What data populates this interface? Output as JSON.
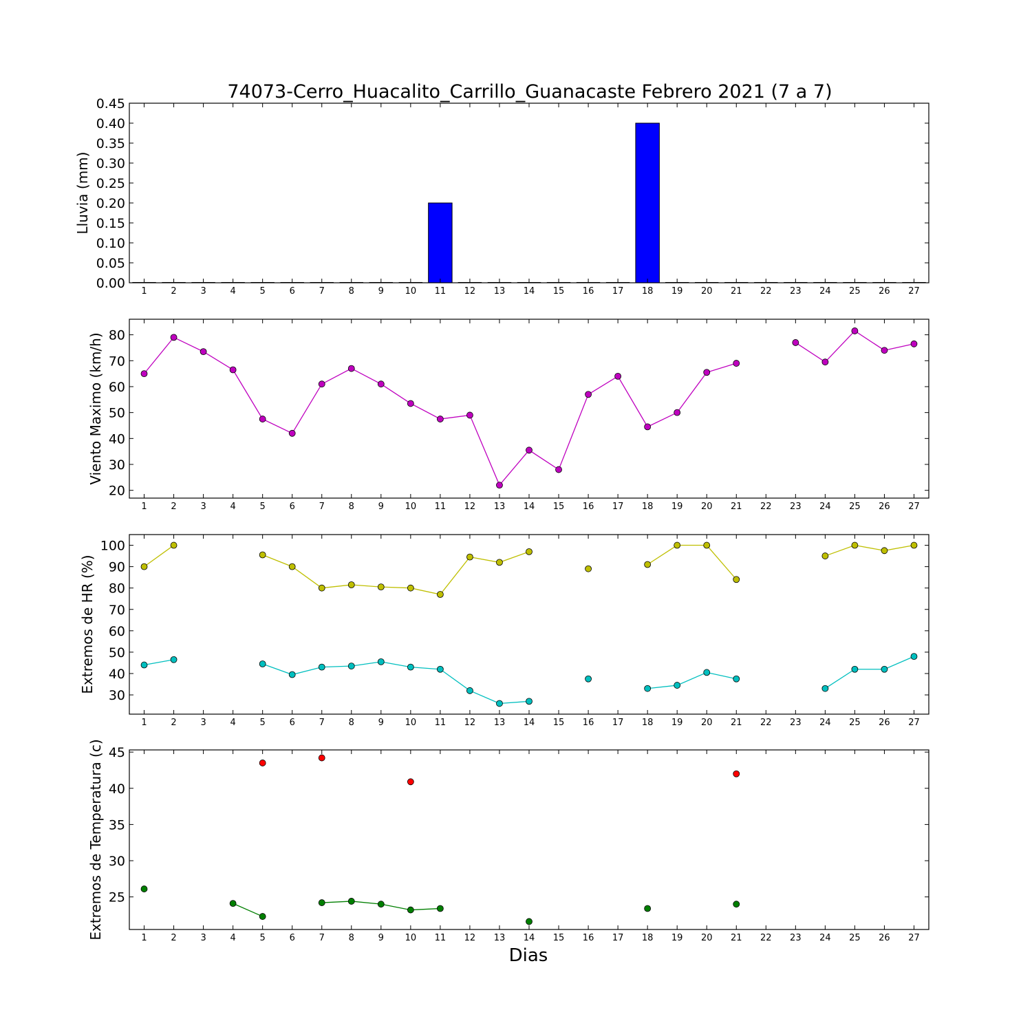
{
  "figure": {
    "title": "74073-Cerro_Huacalito_Carrillo_Guanacaste Febrero 2021  (7 a 7)",
    "xlabel": "Dias"
  },
  "chart_data": [
    {
      "type": "bar",
      "ylabel": "Lluvia (mm)",
      "categories": [
        1,
        2,
        3,
        4,
        5,
        6,
        7,
        8,
        9,
        10,
        11,
        12,
        13,
        14,
        15,
        16,
        17,
        18,
        19,
        20,
        21,
        22,
        23,
        24,
        25,
        26,
        27
      ],
      "values": [
        0,
        0,
        0,
        0,
        0,
        0,
        0,
        0,
        0,
        0,
        0.2,
        0,
        0,
        0,
        0,
        0,
        0,
        0.4,
        0,
        0,
        0,
        0,
        0,
        0,
        0,
        0,
        0
      ],
      "ylim": [
        0,
        0.45
      ],
      "yticks": [
        "0.00",
        "0.05",
        "0.10",
        "0.15",
        "0.20",
        "0.25",
        "0.30",
        "0.35",
        "0.40",
        "0.45"
      ],
      "color": "#0000ff",
      "grid": false
    },
    {
      "type": "line",
      "ylabel": "Viento Maximo (km/h)",
      "x": [
        1,
        2,
        3,
        4,
        5,
        6,
        7,
        8,
        9,
        10,
        11,
        12,
        13,
        14,
        15,
        16,
        17,
        18,
        19,
        20,
        21,
        22,
        23,
        24,
        25,
        26,
        27
      ],
      "series": [
        {
          "color": "#bf00bf",
          "values": [
            65,
            79,
            73.5,
            66.5,
            47.5,
            42,
            61,
            67,
            61,
            53.5,
            47.5,
            49,
            22,
            35.5,
            28,
            57,
            64,
            44.5,
            50,
            65.5,
            69,
            null,
            77,
            69.5,
            81.5,
            74,
            76.5
          ]
        }
      ],
      "ylim": [
        17,
        86
      ],
      "yticks": [
        "20",
        "30",
        "40",
        "50",
        "60",
        "70",
        "80"
      ],
      "grid": false
    },
    {
      "type": "line",
      "ylabel": "Extremos de HR (%)",
      "x": [
        1,
        2,
        3,
        4,
        5,
        6,
        7,
        8,
        9,
        10,
        11,
        12,
        13,
        14,
        15,
        16,
        17,
        18,
        19,
        20,
        21,
        22,
        23,
        24,
        25,
        26,
        27
      ],
      "series": [
        {
          "color": "#bfbf00",
          "values": [
            90,
            100,
            null,
            null,
            95.5,
            90,
            80,
            81.5,
            80.5,
            80,
            77,
            94.5,
            92,
            97,
            null,
            89,
            null,
            91,
            100,
            100,
            84,
            null,
            null,
            95,
            100,
            97.5,
            100
          ]
        },
        {
          "color": "#00bfbf",
          "values": [
            44,
            46.5,
            null,
            null,
            44.5,
            39.5,
            43,
            43.5,
            45.5,
            43,
            42,
            32,
            26,
            27,
            null,
            37.5,
            null,
            33,
            34.5,
            40.5,
            37.5,
            null,
            null,
            33,
            42,
            42,
            48
          ]
        }
      ],
      "ylim": [
        21,
        105
      ],
      "yticks": [
        "30",
        "40",
        "50",
        "60",
        "70",
        "80",
        "90",
        "100"
      ],
      "grid": false
    },
    {
      "type": "line",
      "ylabel": "Extremos de Temperatura (c)",
      "x": [
        1,
        2,
        3,
        4,
        5,
        6,
        7,
        8,
        9,
        10,
        11,
        12,
        13,
        14,
        15,
        16,
        17,
        18,
        19,
        20,
        21,
        22,
        23,
        24,
        25,
        26,
        27
      ],
      "series": [
        {
          "color": "#ff0000",
          "values": [
            null,
            null,
            null,
            null,
            43.5,
            null,
            44.2,
            null,
            null,
            40.9,
            null,
            null,
            null,
            null,
            null,
            null,
            null,
            null,
            null,
            null,
            42,
            null,
            null,
            null,
            null,
            null,
            null
          ]
        },
        {
          "color": "#007f00",
          "values": [
            26.1,
            null,
            null,
            24.1,
            22.3,
            null,
            24.2,
            24.4,
            24,
            23.2,
            23.4,
            null,
            null,
            21.6,
            null,
            null,
            null,
            23.4,
            null,
            null,
            24,
            null,
            null,
            null,
            null,
            null,
            null
          ]
        }
      ],
      "ylim": [
        20.5,
        45.3
      ],
      "yticks": [
        "25",
        "30",
        "35",
        "40",
        "45"
      ],
      "grid": false
    }
  ]
}
